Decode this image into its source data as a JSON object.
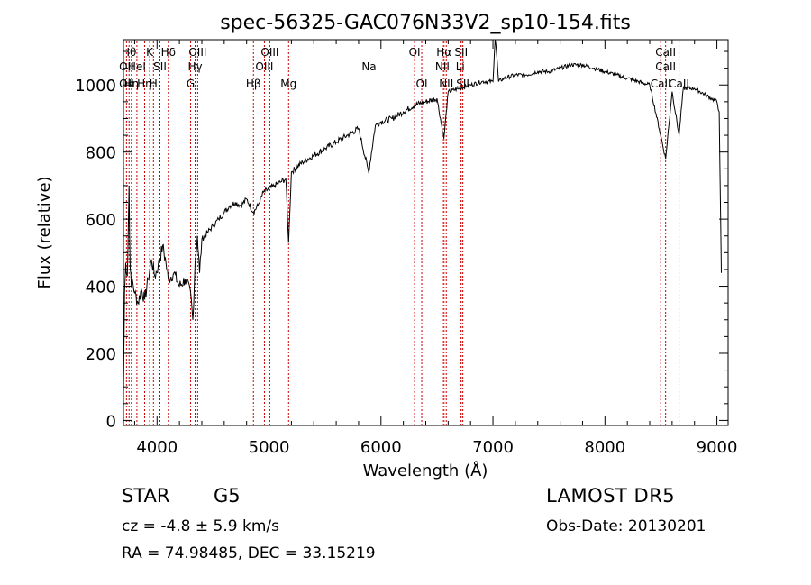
{
  "chart_data": {
    "type": "line",
    "title": "spec-56325-GAC076N33V2_sp10-154.fits",
    "xlabel": "Wavelength (Å)",
    "ylabel": "Flux (relative)",
    "xlim": [
      3700,
      9100
    ],
    "ylim": [
      -15,
      1135
    ],
    "x_ticks": [
      4000,
      5000,
      6000,
      7000,
      8000,
      9000
    ],
    "x_tick_labels": [
      "4000",
      "5000",
      "6000",
      "7000",
      "8000",
      "9000"
    ],
    "y_ticks": [
      0,
      200,
      400,
      600,
      800,
      1000
    ],
    "y_tick_labels": [
      "0",
      "200",
      "400",
      "600",
      "800",
      "1000"
    ],
    "grid": false,
    "line_color": "#000000",
    "marker_color": "#cc0000",
    "series": [
      {
        "x": [
          3700,
          3710,
          3720,
          3735,
          3750,
          3760,
          3770,
          3780,
          3800,
          3830,
          3860,
          3890,
          3920,
          3950,
          3980,
          4010,
          4050,
          4080,
          4100,
          4150,
          4200,
          4250,
          4300,
          4320,
          4340,
          4360,
          4380,
          4400,
          4450,
          4500,
          4550,
          4600,
          4650,
          4700,
          4750,
          4800,
          4861,
          4900,
          4950,
          5000,
          5050,
          5100,
          5150,
          5175,
          5200,
          5300,
          5400,
          5500,
          5600,
          5700,
          5800,
          5890,
          5950,
          6000,
          6100,
          6200,
          6300,
          6400,
          6500,
          6562,
          6600,
          6700,
          6800,
          6900,
          7000,
          7020,
          7050,
          7100,
          7200,
          7300,
          7400,
          7500,
          7600,
          7700,
          7800,
          7900,
          8000,
          8100,
          8200,
          8300,
          8400,
          8498,
          8542,
          8600,
          8662,
          8700,
          8800,
          8900,
          8950,
          9000,
          9020,
          9040
        ],
        "y": [
          80,
          380,
          470,
          430,
          700,
          450,
          400,
          420,
          380,
          350,
          390,
          360,
          420,
          480,
          430,
          460,
          520,
          470,
          420,
          440,
          400,
          420,
          380,
          300,
          470,
          550,
          440,
          540,
          560,
          580,
          600,
          620,
          640,
          650,
          640,
          660,
          620,
          640,
          680,
          690,
          700,
          710,
          720,
          530,
          740,
          770,
          790,
          810,
          830,
          850,
          870,
          740,
          880,
          890,
          900,
          920,
          940,
          950,
          960,
          840,
          980,
          990,
          1000,
          1010,
          1010,
          1150,
          1010,
          1020,
          1030,
          1030,
          1040,
          1040,
          1050,
          1060,
          1060,
          1050,
          1040,
          1030,
          1020,
          1010,
          1000,
          850,
          780,
          980,
          850,
          990,
          990,
          970,
          960,
          950,
          920,
          440
        ]
      }
    ],
    "line_markers": [
      {
        "wavelength": 3727,
        "label": "OII",
        "row": 2
      },
      {
        "wavelength": 3727,
        "label": "OII",
        "row": 3
      },
      {
        "wavelength": 3750,
        "label": "Hθ",
        "row": 1
      },
      {
        "wavelength": 3771,
        "label": "Hη",
        "row": 3
      },
      {
        "wavelength": 3820,
        "label": "HeI",
        "row": 2
      },
      {
        "wavelength": 3889,
        "label": "Hη",
        "row": 3
      },
      {
        "wavelength": 3934,
        "label": "K",
        "row": 1
      },
      {
        "wavelength": 3968,
        "label": "H",
        "row": 3
      },
      {
        "wavelength": 4026,
        "label": "SII",
        "row": 2
      },
      {
        "wavelength": 4101,
        "label": "Hδ",
        "row": 1
      },
      {
        "wavelength": 4300,
        "label": "G",
        "row": 3
      },
      {
        "wavelength": 4340,
        "label": "Hγ",
        "row": 2
      },
      {
        "wavelength": 4363,
        "label": "OIII",
        "row": 1
      },
      {
        "wavelength": 4861,
        "label": "Hβ",
        "row": 3
      },
      {
        "wavelength": 4959,
        "label": "OIII",
        "row": 2
      },
      {
        "wavelength": 5007,
        "label": "OIII",
        "row": 1
      },
      {
        "wavelength": 5175,
        "label": "Mg",
        "row": 3
      },
      {
        "wavelength": 5893,
        "label": "Na",
        "row": 2
      },
      {
        "wavelength": 6300,
        "label": "OI",
        "row": 1
      },
      {
        "wavelength": 6364,
        "label": "OI",
        "row": 3
      },
      {
        "wavelength": 6548,
        "label": "NII",
        "row": 2
      },
      {
        "wavelength": 6563,
        "label": "Hα",
        "row": 1
      },
      {
        "wavelength": 6583,
        "label": "NII",
        "row": 3
      },
      {
        "wavelength": 6708,
        "label": "Li",
        "row": 2
      },
      {
        "wavelength": 6716,
        "label": "SII",
        "row": 1
      },
      {
        "wavelength": 6731,
        "label": "SII",
        "row": 3
      },
      {
        "wavelength": 8498,
        "label": "CaII",
        "row": 3
      },
      {
        "wavelength": 8542,
        "label": "CaII",
        "row": 2
      },
      {
        "wavelength": 8542,
        "label": "CaII",
        "row": 1
      },
      {
        "wavelength": 8662,
        "label": "CaII",
        "row": 3
      }
    ]
  },
  "footer": {
    "object_class": "STAR",
    "subclass": "G5",
    "redshift_text": "cz = -4.8 ± 5.9 km/s",
    "coords_text": "RA =  74.98485, DEC =  33.15219",
    "survey": "LAMOST DR5",
    "obs_date": "Obs-Date: 20130201"
  }
}
